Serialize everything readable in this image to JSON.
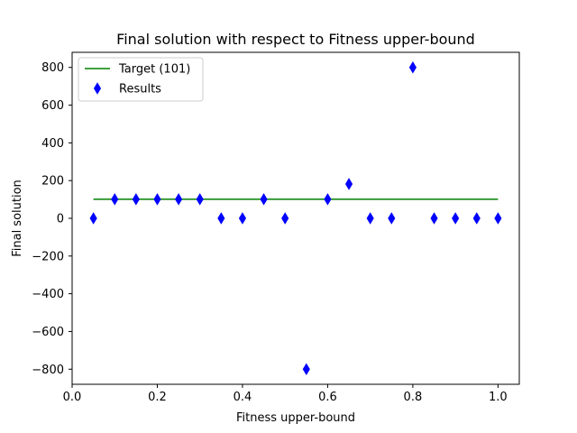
{
  "chart_data": {
    "type": "scatter",
    "title": "Final solution with respect to Fitness upper-bound",
    "xlabel": "Fitness upper-bound",
    "ylabel": "Final solution",
    "xlim": [
      0.0,
      1.05
    ],
    "ylim": [
      -880,
      880
    ],
    "xticks": [
      0.0,
      0.2,
      0.4,
      0.6,
      0.8,
      1.0
    ],
    "xtick_labels": [
      "0.0",
      "0.2",
      "0.4",
      "0.6",
      "0.8",
      "1.0"
    ],
    "yticks": [
      -800,
      -600,
      -400,
      -200,
      0,
      200,
      400,
      600,
      800
    ],
    "ytick_labels": [
      "−800",
      "−600",
      "−400",
      "−200",
      "0",
      "200",
      "400",
      "600",
      "800"
    ],
    "grid": false,
    "legend_position": "top-left",
    "series": [
      {
        "name": "Target (101)",
        "kind": "line",
        "color": "#008000",
        "x": [
          0.05,
          1.0
        ],
        "y": [
          101,
          101
        ]
      },
      {
        "name": "Results",
        "kind": "scatter",
        "marker": "thin-diamond",
        "color": "#0000ff",
        "x": [
          0.05,
          0.1,
          0.15,
          0.2,
          0.25,
          0.3,
          0.35,
          0.4,
          0.45,
          0.5,
          0.55,
          0.6,
          0.65,
          0.7,
          0.75,
          0.8,
          0.85,
          0.9,
          0.95,
          1.0
        ],
        "y": [
          0,
          101,
          101,
          101,
          101,
          101,
          0,
          0,
          101,
          0,
          -800,
          101,
          182,
          0,
          0,
          800,
          0,
          0,
          0,
          0
        ]
      }
    ]
  }
}
